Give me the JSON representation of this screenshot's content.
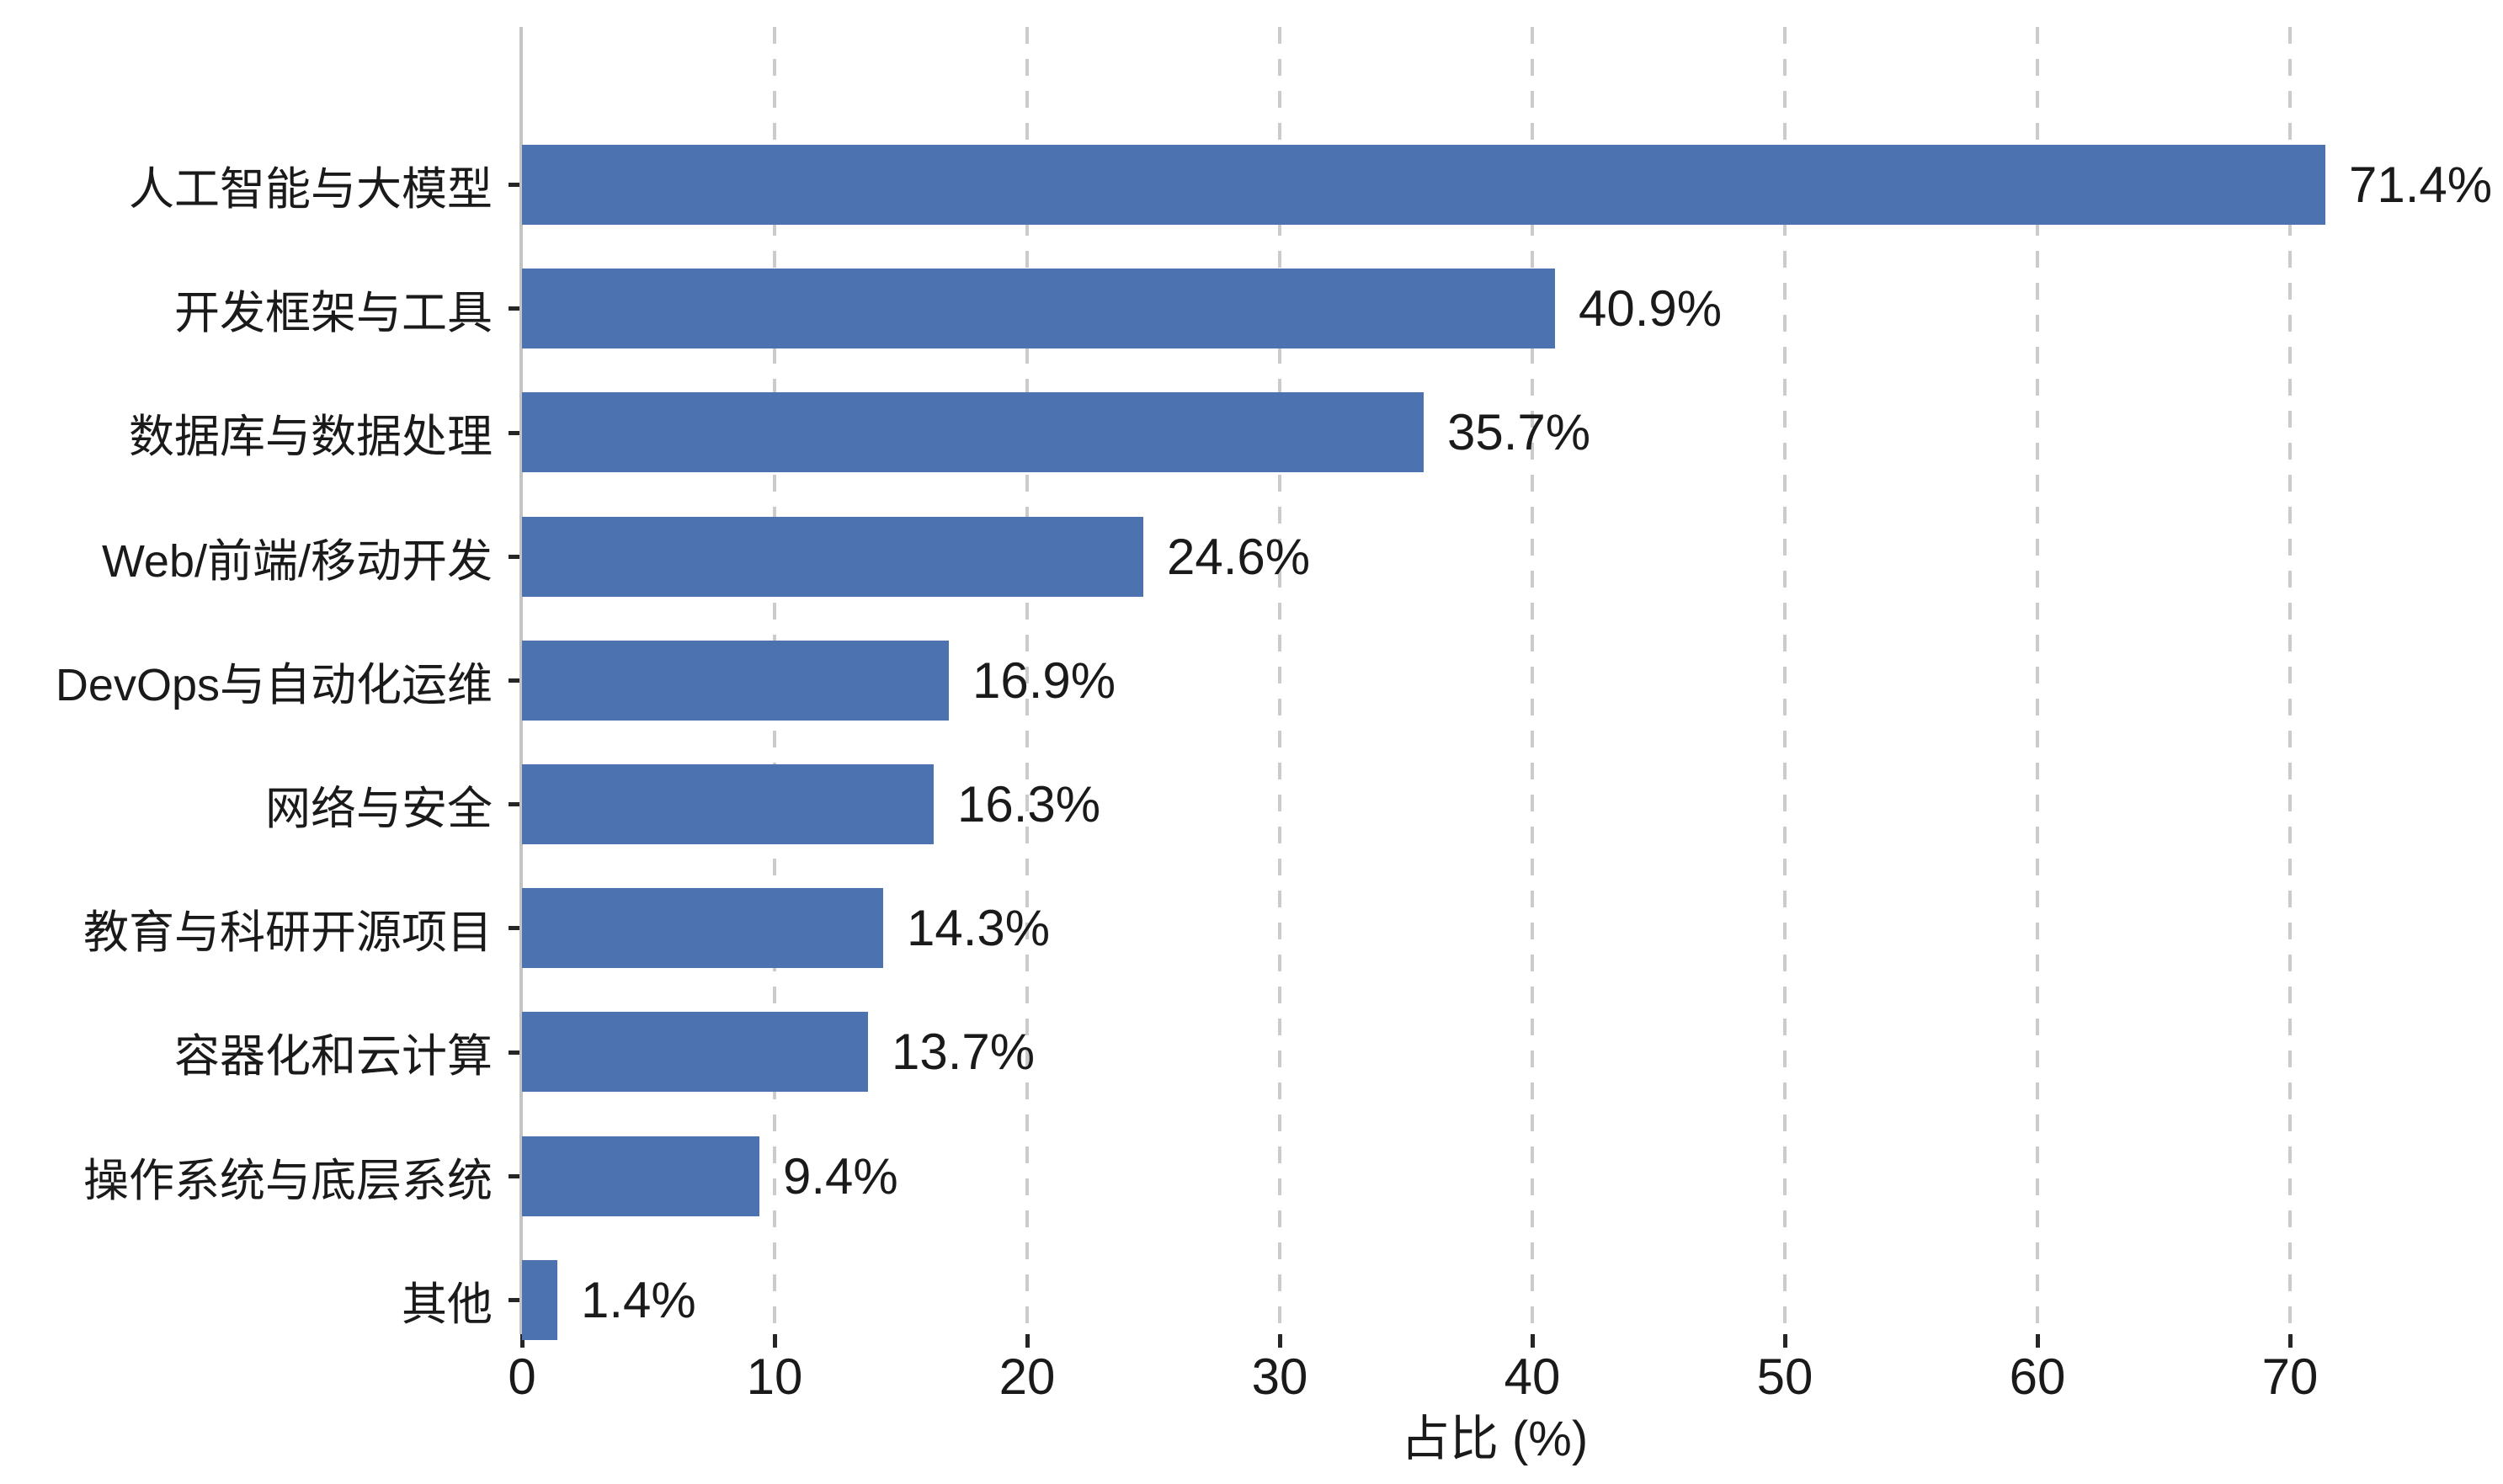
{
  "chart_data": {
    "type": "bar",
    "orientation": "horizontal",
    "title": "",
    "xlabel": "占比 (%)",
    "ylabel": "",
    "categories": [
      "人工智能与大模型",
      "开发框架与工具",
      "数据库与数据处理",
      "Web/前端/移动开发",
      "DevOps与自动化运维",
      "网络与安全",
      "教育与科研开源项目",
      "容器化和云计算",
      "操作系统与底层系统",
      "其他"
    ],
    "values": [
      71.4,
      40.9,
      35.7,
      24.6,
      16.9,
      16.3,
      14.3,
      13.7,
      9.4,
      1.4
    ],
    "value_labels": [
      "71.4%",
      "40.9%",
      "35.7%",
      "24.6%",
      "16.9%",
      "16.3%",
      "14.3%",
      "13.7%",
      "9.4%",
      "1.4%"
    ],
    "xlim": [
      0,
      77
    ],
    "xticks": [
      0,
      10,
      20,
      30,
      40,
      50,
      60,
      70
    ],
    "grid": "vertical-dashed",
    "legend": "none",
    "colors": {
      "bar": "#4c72b0",
      "grid": "#cbcbcb",
      "spine": "#c4c4c4",
      "tick": "#262626",
      "text": "#1a1a1a"
    }
  }
}
